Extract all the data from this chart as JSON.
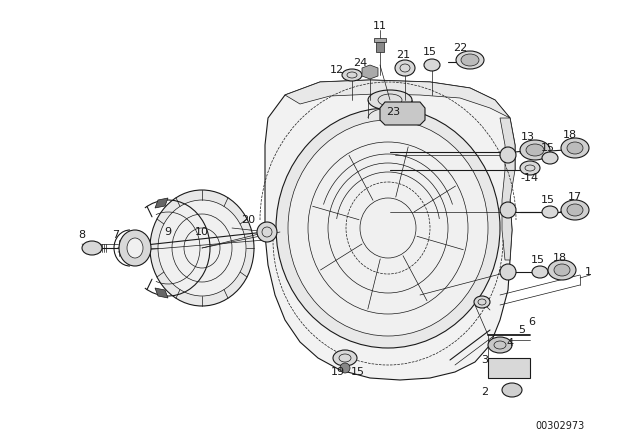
{
  "bg_color": "#ffffff",
  "watermark": "00302973",
  "fig_width": 6.4,
  "fig_height": 4.48,
  "dpi": 100
}
